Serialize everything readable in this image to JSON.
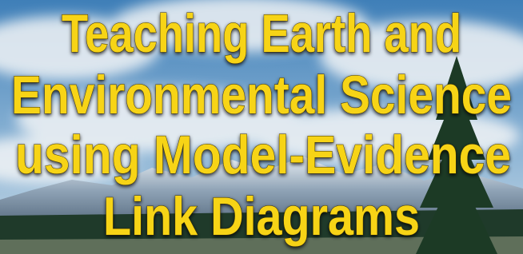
{
  "title_lines": [
    "Teaching Earth and",
    "Environmental Science",
    "using Model-Evidence",
    "Link Diagrams"
  ]
}
